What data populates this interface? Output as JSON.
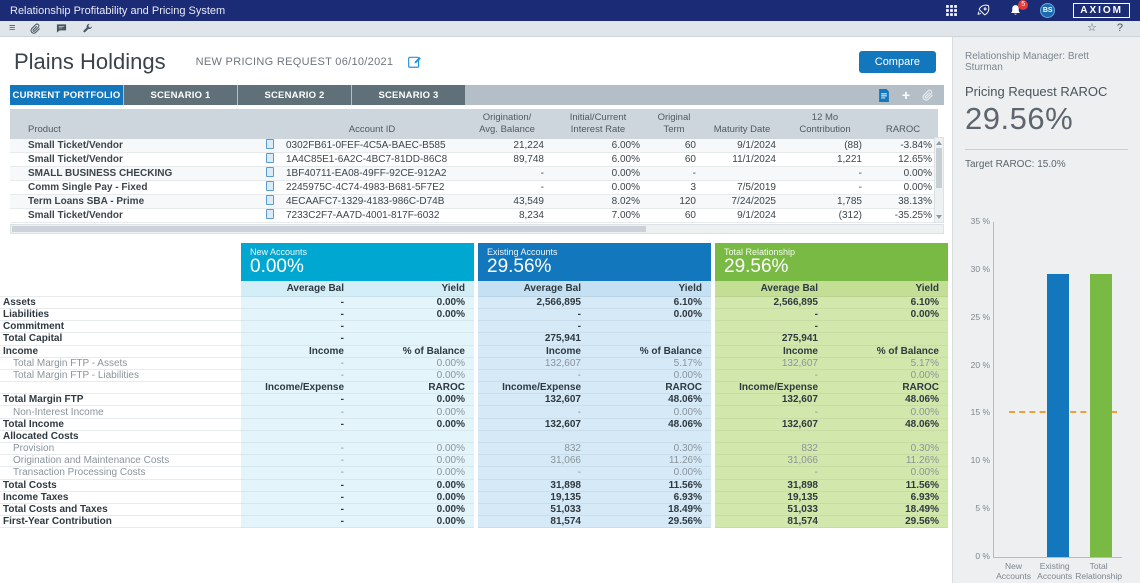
{
  "icons": {
    "menu": "≡",
    "plus": "+",
    "help": "?",
    "star": "☆"
  },
  "top_bar": {
    "title": "Relationship Profitability and Pricing System",
    "notification_count": "5",
    "avatar_initials": "BS",
    "logo": "AXIOM"
  },
  "header": {
    "client_name": "Plains Holdings",
    "request_label": "NEW PRICING REQUEST 06/10/2021",
    "compare_label": "Compare"
  },
  "tabs": [
    {
      "label": "CURRENT PORTFOLIO",
      "active": true
    },
    {
      "label": "SCENARIO 1",
      "active": false
    },
    {
      "label": "SCENARIO 2",
      "active": false
    },
    {
      "label": "SCENARIO 3",
      "active": false
    }
  ],
  "portfolio_table": {
    "columns": [
      "Product",
      "",
      "Account ID",
      "Origination/\nAvg. Balance",
      "Initial/Current\nInterest Rate",
      "Original\nTerm",
      "Maturity Date",
      "12 Mo\nContribution",
      "RAROC"
    ],
    "rows": [
      {
        "product": "Small Ticket/Vendor",
        "account_id": "0302FB61-0FEF-4C5A-BAEC-B585",
        "avg_balance": "21,224",
        "rate": "6.00%",
        "term": "60",
        "maturity": "9/1/2024",
        "contribution": "(88)",
        "raroc": "-3.84%"
      },
      {
        "product": "Small Ticket/Vendor",
        "account_id": "1A4C85E1-6A2C-4BC7-81DD-86C8",
        "avg_balance": "89,748",
        "rate": "6.00%",
        "term": "60",
        "maturity": "11/1/2024",
        "contribution": "1,221",
        "raroc": "12.65%"
      },
      {
        "product": "SMALL BUSINESS CHECKING",
        "account_id": "1BF40711-EA08-49FF-92CE-912A2",
        "avg_balance": "-",
        "rate": "0.00%",
        "term": "-",
        "maturity": "",
        "contribution": "-",
        "raroc": "0.00%"
      },
      {
        "product": "Comm Single Pay - Fixed",
        "account_id": "2245975C-4C74-4983-B681-5F7E2",
        "avg_balance": "-",
        "rate": "0.00%",
        "term": "3",
        "maturity": "7/5/2019",
        "contribution": "-",
        "raroc": "0.00%"
      },
      {
        "product": "Term Loans SBA - Prime",
        "account_id": "4ECAAFC7-1329-4183-986C-D74B",
        "avg_balance": "43,549",
        "rate": "8.02%",
        "term": "120",
        "maturity": "7/24/2025",
        "contribution": "1,785",
        "raroc": "38.13%"
      },
      {
        "product": "Small Ticket/Vendor",
        "account_id": "7233C2F7-AA7D-4001-817F-6032",
        "avg_balance": "8,234",
        "rate": "7.00%",
        "term": "60",
        "maturity": "9/1/2024",
        "contribution": "(312)",
        "raroc": "-35.25%"
      }
    ]
  },
  "summary_table": {
    "groups": [
      {
        "name": "New Accounts",
        "value": "0.00%"
      },
      {
        "name": "Existing Accounts",
        "value": "29.56%"
      },
      {
        "name": "Total Relationship",
        "value": "29.56%"
      }
    ],
    "col_headers": [
      "Average Bal",
      "Yield"
    ],
    "rows": [
      {
        "label": "Assets",
        "style": "bold",
        "cells": [
          [
            "-",
            "0.00%"
          ],
          [
            "2,566,895",
            "6.10%"
          ],
          [
            "2,566,895",
            "6.10%"
          ]
        ]
      },
      {
        "label": "Liabilities",
        "style": "bold",
        "cells": [
          [
            "-",
            "0.00%"
          ],
          [
            "-",
            "0.00%"
          ],
          [
            "-",
            "0.00%"
          ]
        ]
      },
      {
        "label": "Commitment",
        "style": "bold",
        "cells": [
          [
            "-",
            ""
          ],
          [
            "-",
            ""
          ],
          [
            "-",
            ""
          ]
        ]
      },
      {
        "label": "Total Capital",
        "style": "bold",
        "cells": [
          [
            "-",
            ""
          ],
          [
            "275,941",
            ""
          ],
          [
            "275,941",
            ""
          ]
        ]
      },
      {
        "label": "Income",
        "style": "colhdr",
        "cells": [
          [
            "Income",
            "% of Balance"
          ],
          [
            "Income",
            "% of Balance"
          ],
          [
            "Income",
            "% of Balance"
          ]
        ]
      },
      {
        "label": "Total Margin FTP - Assets",
        "style": "sub",
        "cells": [
          [
            "-",
            "0.00%"
          ],
          [
            "132,607",
            "5.17%"
          ],
          [
            "132,607",
            "5.17%"
          ]
        ]
      },
      {
        "label": "Total Margin FTP - Liabilities",
        "style": "sub",
        "cells": [
          [
            "-",
            "0.00%"
          ],
          [
            "-",
            "0.00%"
          ],
          [
            "-",
            "0.00%"
          ]
        ]
      },
      {
        "label": "",
        "style": "colhdr",
        "cells": [
          [
            "Income/Expense",
            "RAROC"
          ],
          [
            "Income/Expense",
            "RAROC"
          ],
          [
            "Income/Expense",
            "RAROC"
          ]
        ]
      },
      {
        "label": "Total Margin FTP",
        "style": "bold",
        "cells": [
          [
            "-",
            "0.00%"
          ],
          [
            "132,607",
            "48.06%"
          ],
          [
            "132,607",
            "48.06%"
          ]
        ]
      },
      {
        "label": "Non-Interest Income",
        "style": "sub",
        "cells": [
          [
            "-",
            "0.00%"
          ],
          [
            "-",
            "0.00%"
          ],
          [
            "-",
            "0.00%"
          ]
        ]
      },
      {
        "label": "Total Income",
        "style": "bold",
        "cells": [
          [
            "-",
            "0.00%"
          ],
          [
            "132,607",
            "48.06%"
          ],
          [
            "132,607",
            "48.06%"
          ]
        ]
      },
      {
        "label": "Allocated Costs",
        "style": "section",
        "cells": [
          [
            "",
            ""
          ],
          [
            "",
            ""
          ],
          [
            "",
            ""
          ]
        ]
      },
      {
        "label": "Provision",
        "style": "sub",
        "cells": [
          [
            "-",
            "0.00%"
          ],
          [
            "832",
            "0.30%"
          ],
          [
            "832",
            "0.30%"
          ]
        ]
      },
      {
        "label": "Origination and Maintenance Costs",
        "style": "sub",
        "cells": [
          [
            "-",
            "0.00%"
          ],
          [
            "31,066",
            "11.26%"
          ],
          [
            "31,066",
            "11.26%"
          ]
        ]
      },
      {
        "label": "Transaction Processing Costs",
        "style": "sub",
        "cells": [
          [
            "-",
            "0.00%"
          ],
          [
            "-",
            "0.00%"
          ],
          [
            "-",
            "0.00%"
          ]
        ]
      },
      {
        "label": "Total Costs",
        "style": "bold",
        "cells": [
          [
            "-",
            "0.00%"
          ],
          [
            "31,898",
            "11.56%"
          ],
          [
            "31,898",
            "11.56%"
          ]
        ]
      },
      {
        "label": "Income Taxes",
        "style": "bold",
        "cells": [
          [
            "-",
            "0.00%"
          ],
          [
            "19,135",
            "6.93%"
          ],
          [
            "19,135",
            "6.93%"
          ]
        ]
      },
      {
        "label": "Total Costs and Taxes",
        "style": "bold",
        "cells": [
          [
            "-",
            "0.00%"
          ],
          [
            "51,033",
            "18.49%"
          ],
          [
            "51,033",
            "18.49%"
          ]
        ]
      },
      {
        "label": "First-Year Contribution",
        "style": "bold",
        "cells": [
          [
            "-",
            "0.00%"
          ],
          [
            "81,574",
            "29.56%"
          ],
          [
            "81,574",
            "29.56%"
          ]
        ]
      }
    ]
  },
  "side_panel": {
    "manager": "Relationship Manager: Brett Sturman",
    "raroc_label": "Pricing Request RAROC",
    "raroc_value": "29.56%",
    "target": "Target RAROC: 15.0%"
  },
  "chart_data": {
    "type": "bar",
    "categories": [
      "New Accounts",
      "Existing Accounts",
      "Total Relationship"
    ],
    "values": [
      0,
      29.56,
      29.56
    ],
    "bar_colors": [
      "#00a8d1",
      "#1377bd",
      "#79ba44"
    ],
    "title": "",
    "xlabel": "",
    "ylabel": "",
    "ylim": [
      0,
      35
    ],
    "yticks": [
      0,
      5,
      10,
      15,
      20,
      25,
      30,
      35
    ],
    "target_line": 15,
    "target_color": "#f0a030",
    "legend": "none",
    "grid": "off"
  }
}
